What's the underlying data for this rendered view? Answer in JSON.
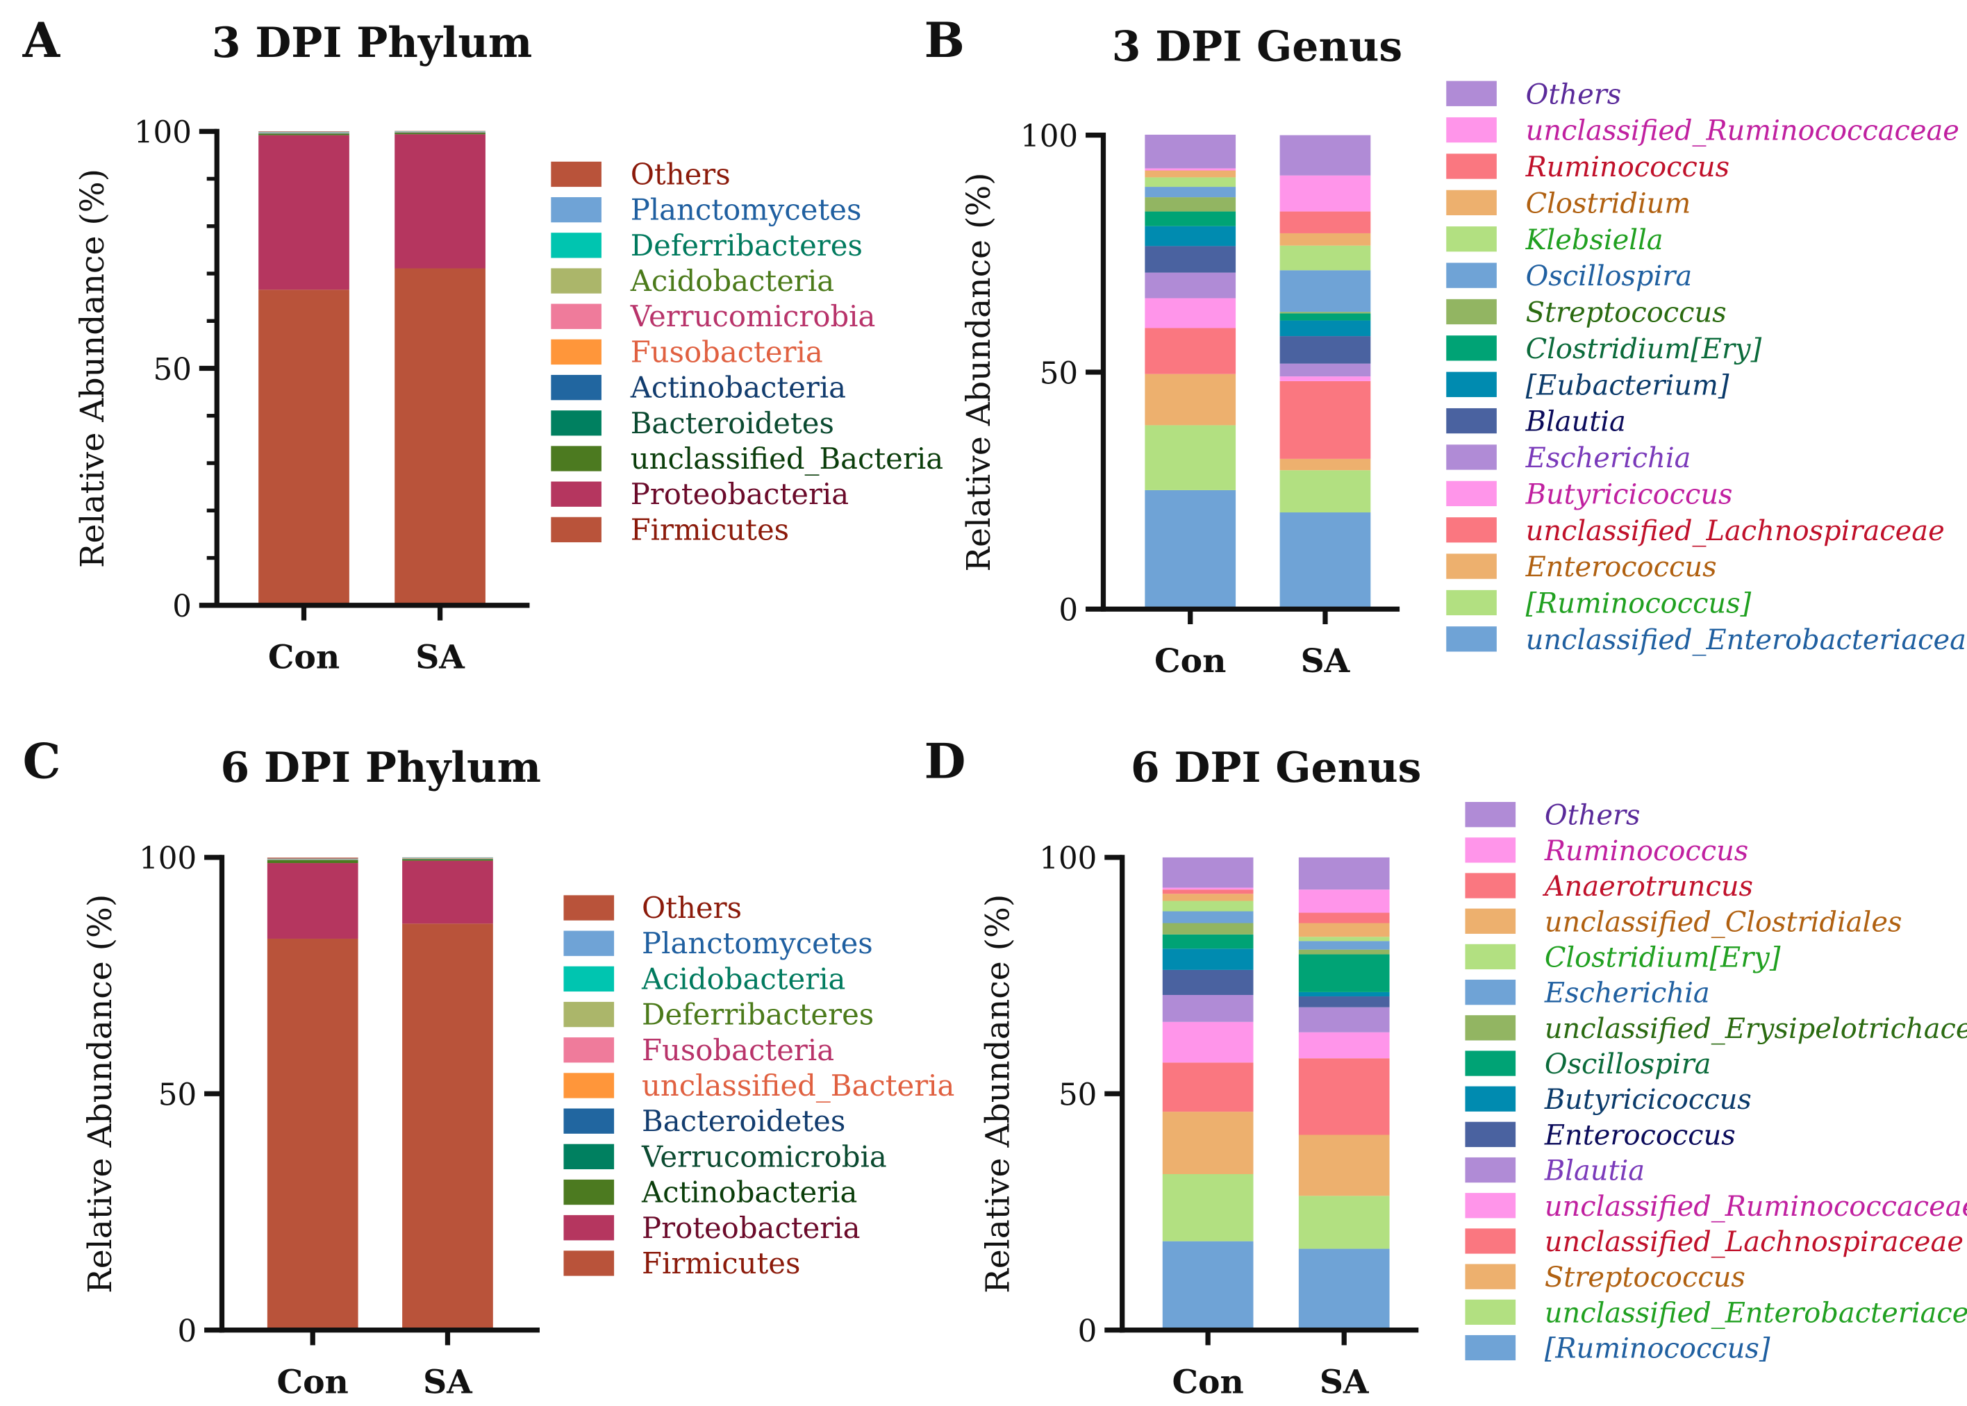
{
  "chart_data": [
    {
      "panel": "A",
      "type": "bar",
      "stacked": true,
      "title": "3 DPI Phylum",
      "xlabel": "",
      "ylabel": "Relative Abundance (%)",
      "ylim": [
        0,
        100
      ],
      "yticks": [
        "0",
        "50",
        "100"
      ],
      "minor_ticks": true,
      "categories": [
        "Con",
        "SA"
      ],
      "legend_position": "right",
      "series": [
        {
          "name": "Others",
          "color": "#b9533a",
          "text_color": "#8b1a0a",
          "values": [
            0.1,
            0.05
          ]
        },
        {
          "name": "Planctomycetes",
          "color": "#6fa3d6",
          "text_color": "#1f5fa0",
          "values": [
            0.1,
            0.05
          ]
        },
        {
          "name": "Deferribacteres",
          "color": "#00c5b0",
          "text_color": "#007a5e",
          "values": [
            0.05,
            0.05
          ]
        },
        {
          "name": "Acidobacteria",
          "color": "#abb66a",
          "text_color": "#4b7a1a",
          "values": [
            0.05,
            0.05
          ]
        },
        {
          "name": "Verrucomicrobia",
          "color": "#ef7b9b",
          "text_color": "#b8336a",
          "values": [
            0.05,
            0.05
          ]
        },
        {
          "name": "Fusobacteria",
          "color": "#ff963a",
          "text_color": "#e06040",
          "values": [
            0.05,
            0.05
          ]
        },
        {
          "name": "Actinobacteria",
          "color": "#2166a0",
          "text_color": "#123c6e",
          "values": [
            0.05,
            0.05
          ]
        },
        {
          "name": "Bacteroidetes",
          "color": "#008060",
          "text_color": "#0b4a30",
          "values": [
            0.05,
            0.05
          ]
        },
        {
          "name": "unclassified_Bacteria",
          "color": "#4c7a20",
          "text_color": "#0a3d0a",
          "values": [
            0.3,
            0.3
          ]
        },
        {
          "name": "Proteobacteria",
          "color": "#b5365f",
          "text_color": "#6b0a2a",
          "values": [
            32.6,
            28.3
          ]
        },
        {
          "name": "Firmicutes",
          "color": "#b9533a",
          "text_color": "#8b1a0a",
          "values": [
            66.6,
            71.1
          ]
        }
      ]
    },
    {
      "panel": "B",
      "type": "bar",
      "stacked": true,
      "title": "3 DPI Genus",
      "xlabel": "",
      "ylabel": "Relative Abundance (%)",
      "ylim": [
        0,
        100
      ],
      "yticks": [
        "0",
        "50",
        "100"
      ],
      "minor_ticks": false,
      "categories": [
        "Con",
        "SA"
      ],
      "legend_position": "right",
      "legend_italic": true,
      "series": [
        {
          "name": "Others",
          "color": "#b08bd6",
          "text_color": "#5a2a9a",
          "values": [
            7.1,
            8.5
          ]
        },
        {
          "name": "unclassified_Ruminococcaceae",
          "color": "#ff95ea",
          "text_color": "#c020a0",
          "values": [
            0.4,
            7.6
          ]
        },
        {
          "name": "Ruminococcus",
          "color": "#fa7780",
          "text_color": "#c0102a",
          "values": [
            0.1,
            4.6
          ]
        },
        {
          "name": "Clostridium",
          "color": "#edb06e",
          "text_color": "#b06010",
          "values": [
            1.4,
            2.6
          ]
        },
        {
          "name": "Klebsiella",
          "color": "#b2e081",
          "text_color": "#20a020",
          "values": [
            2.0,
            5.2
          ]
        },
        {
          "name": "Oscillospira",
          "color": "#6fa3d6",
          "text_color": "#1f5fa0",
          "values": [
            2.2,
            8.8
          ]
        },
        {
          "name": "Streptococcus",
          "color": "#92b562",
          "text_color": "#2a6a10",
          "values": [
            3.0,
            0.3
          ]
        },
        {
          "name": "Clostridium[Ery]",
          "color": "#00a375",
          "text_color": "#0a6a3a",
          "values": [
            3.1,
            1.5
          ]
        },
        {
          "name": "[Eubacterium]",
          "color": "#008bb0",
          "text_color": "#0a3a6a",
          "values": [
            4.2,
            3.3
          ]
        },
        {
          "name": "Blautia",
          "color": "#4a62a0",
          "text_color": "#0a0a5a",
          "values": [
            5.6,
            5.8
          ]
        },
        {
          "name": "Escherichia",
          "color": "#b08bd6",
          "text_color": "#7a3aba",
          "values": [
            5.4,
            2.7
          ]
        },
        {
          "name": "Butyricicoccus",
          "color": "#ff95ea",
          "text_color": "#c020a0",
          "values": [
            6.3,
            1.0
          ]
        },
        {
          "name": "unclassified_Lachnospiraceae",
          "color": "#fa7780",
          "text_color": "#c0102a",
          "values": [
            9.7,
            16.4
          ]
        },
        {
          "name": "Enterococcus",
          "color": "#edb06e",
          "text_color": "#b06010",
          "values": [
            10.8,
            2.4
          ]
        },
        {
          "name": "[Ruminococcus]",
          "color": "#b2e081",
          "text_color": "#20a020",
          "values": [
            13.7,
            8.9
          ]
        },
        {
          "name": "unclassified_Enterobacteriaceae",
          "color": "#6fa3d6",
          "text_color": "#1f5fa0",
          "values": [
            25.1,
            20.4
          ]
        }
      ]
    },
    {
      "panel": "C",
      "type": "bar",
      "stacked": true,
      "title": "6 DPI Phylum",
      "xlabel": "",
      "ylabel": "Relative Abundance (%)",
      "ylim": [
        0,
        100
      ],
      "yticks": [
        "0",
        "50",
        "100"
      ],
      "minor_ticks": false,
      "categories": [
        "Con",
        "SA"
      ],
      "legend_position": "right",
      "series": [
        {
          "name": "Others",
          "color": "#b9533a",
          "text_color": "#8b1a0a",
          "values": [
            0.2,
            0.05
          ]
        },
        {
          "name": "Planctomycetes",
          "color": "#6fa3d6",
          "text_color": "#1f5fa0",
          "values": [
            0.05,
            0.05
          ]
        },
        {
          "name": "Acidobacteria",
          "color": "#00c5b0",
          "text_color": "#007a5e",
          "values": [
            0.05,
            0.05
          ]
        },
        {
          "name": "Deferribacteres",
          "color": "#abb66a",
          "text_color": "#4b7a1a",
          "values": [
            0.05,
            0.05
          ]
        },
        {
          "name": "Fusobacteria",
          "color": "#ef7b9b",
          "text_color": "#b8336a",
          "values": [
            0.05,
            0.05
          ]
        },
        {
          "name": "unclassified_Bacteria",
          "color": "#ff963a",
          "text_color": "#e06040",
          "values": [
            0.05,
            0.05
          ]
        },
        {
          "name": "Bacteroidetes",
          "color": "#2166a0",
          "text_color": "#123c6e",
          "values": [
            0.05,
            0.05
          ]
        },
        {
          "name": "Verrucomicrobia",
          "color": "#008060",
          "text_color": "#0b4a30",
          "values": [
            0.05,
            0.05
          ]
        },
        {
          "name": "Actinobacteria",
          "color": "#4c7a20",
          "text_color": "#0a3d0a",
          "values": [
            0.6,
            0.3
          ]
        },
        {
          "name": "Proteobacteria",
          "color": "#b5365f",
          "text_color": "#6b0a2a",
          "values": [
            16.0,
            13.3
          ]
        },
        {
          "name": "Firmicutes",
          "color": "#b9533a",
          "text_color": "#8b1a0a",
          "values": [
            82.8,
            86.0
          ]
        }
      ]
    },
    {
      "panel": "D",
      "type": "bar",
      "stacked": true,
      "title": "6 DPI Genus",
      "xlabel": "",
      "ylabel": "Relative Abundance (%)",
      "ylim": [
        0,
        100
      ],
      "yticks": [
        "0",
        "50",
        "100"
      ],
      "minor_ticks": false,
      "categories": [
        "Con",
        "SA"
      ],
      "legend_position": "right",
      "legend_italic": true,
      "series": [
        {
          "name": "Others",
          "color": "#b08bd6",
          "text_color": "#5a2a9a",
          "values": [
            6.4,
            6.8
          ]
        },
        {
          "name": "Ruminococcus",
          "color": "#ff95ea",
          "text_color": "#c020a0",
          "values": [
            0.4,
            4.9
          ]
        },
        {
          "name": "Anaerotruncus",
          "color": "#fa7780",
          "text_color": "#c0102a",
          "values": [
            0.9,
            2.2
          ]
        },
        {
          "name": "unclassified_Clostridiales",
          "color": "#edb06e",
          "text_color": "#b06010",
          "values": [
            1.5,
            2.9
          ]
        },
        {
          "name": "Clostridium[Ery]",
          "color": "#b2e081",
          "text_color": "#20a020",
          "values": [
            2.2,
            0.9
          ]
        },
        {
          "name": "Escherichia",
          "color": "#6fa3d6",
          "text_color": "#1f5fa0",
          "values": [
            2.5,
            1.8
          ]
        },
        {
          "name": "unclassified_Erysipelotrichaceae",
          "color": "#92b562",
          "text_color": "#2a6a10",
          "values": [
            2.4,
            1.0
          ]
        },
        {
          "name": "Oscillospira",
          "color": "#00a375",
          "text_color": "#0a6a3a",
          "values": [
            3.0,
            8.0
          ]
        },
        {
          "name": "Butyricicoccus",
          "color": "#008bb0",
          "text_color": "#0a3a6a",
          "values": [
            4.5,
            0.9
          ]
        },
        {
          "name": "Enterococcus",
          "color": "#4a62a0",
          "text_color": "#0a0a5a",
          "values": [
            5.3,
            2.3
          ]
        },
        {
          "name": "Blautia",
          "color": "#b08bd6",
          "text_color": "#7a3aba",
          "values": [
            5.7,
            5.3
          ]
        },
        {
          "name": "unclassified_Ruminococcaceae",
          "color": "#ff95ea",
          "text_color": "#c020a0",
          "values": [
            8.6,
            5.5
          ]
        },
        {
          "name": "unclassified_Lachnospiraceae",
          "color": "#fa7780",
          "text_color": "#c0102a",
          "values": [
            10.4,
            16.2
          ]
        },
        {
          "name": "Streptococcus",
          "color": "#edb06e",
          "text_color": "#b06010",
          "values": [
            13.2,
            12.9
          ]
        },
        {
          "name": "unclassified_Enterobacteriaceae",
          "color": "#b2e081",
          "text_color": "#20a020",
          "values": [
            14.2,
            11.2
          ]
        },
        {
          "name": "[Ruminococcus]",
          "color": "#6fa3d6",
          "text_color": "#1f5fa0",
          "values": [
            18.8,
            17.2
          ]
        }
      ]
    }
  ]
}
